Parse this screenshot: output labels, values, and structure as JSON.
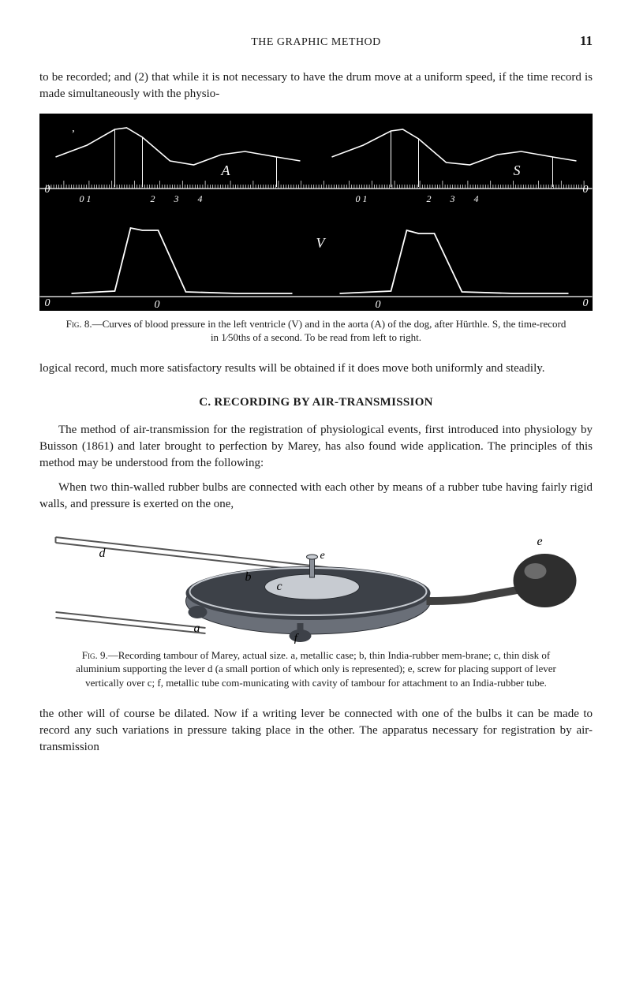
{
  "page": {
    "running_title": "THE GRAPHIC METHOD",
    "number": "11"
  },
  "para_top": "to be recorded; and (2) that while it is not necessary to have the drum move at a uniform speed, if the time record is made simultaneously with the physio-",
  "fig8": {
    "bg": "#000000",
    "stroke": "#ffffff",
    "zero_left": "0",
    "zero_right": "0",
    "label_A": "A",
    "label_S": "S",
    "label_V": "V",
    "ticks_top": [
      "0 1",
      "2",
      "3",
      "4",
      "0 1",
      "2",
      "3",
      "4"
    ],
    "ticks_bottom_left": "0",
    "ticks_bottom_right": "0",
    "top_curve_A_V": {
      "x": [
        20,
        60,
        95,
        110,
        130,
        165,
        195,
        230,
        260,
        300,
        330
      ],
      "y": [
        55,
        40,
        20,
        18,
        30,
        60,
        65,
        52,
        48,
        55,
        60
      ]
    },
    "top_curve_B_S": {
      "x": [
        370,
        410,
        445,
        460,
        480,
        515,
        545,
        580,
        610,
        650,
        680
      ],
      "y": [
        55,
        40,
        22,
        20,
        32,
        62,
        65,
        52,
        48,
        55,
        60
      ]
    },
    "bottom_curve_A": {
      "x": [
        40,
        95,
        115,
        130,
        150,
        185,
        250,
        320
      ],
      "y": [
        228,
        225,
        145,
        148,
        148,
        226,
        228,
        228
      ]
    },
    "bottom_curve_B": {
      "x": [
        380,
        445,
        465,
        480,
        500,
        535,
        600,
        670
      ],
      "y": [
        228,
        225,
        148,
        152,
        152,
        226,
        228,
        228
      ]
    },
    "apostrophe": "ʼ",
    "caption_lead": "Fig. 8.",
    "caption_text": "—Curves of blood pressure in the left ventricle (V) and in the aorta (A) of the dog, after Hürthle.  S, the time-record in 1⁄50ths of a second.  To be read from left to right."
  },
  "para_mid": "logical record, much more satisfactory results will be obtained if it does move both uniformly and steadily.",
  "section_c": "C.  RECORDING BY AIR-TRANSMISSION",
  "para_c1": "The method of air-transmission for the registration of physiological events, first introduced into physiology by Buisson (1861) and later brought to perfection by Marey, has also found wide application.  The principles of this method may be understood from the following:",
  "para_c2": "When two thin-walled rubber bulbs are connected with each other by means of a rubber tube having fairly rigid walls, and pressure is exerted on the one,",
  "fig9": {
    "caption_lead": "Fig. 9.",
    "caption_text": "—Recording tambour of Marey, actual size.  a, metallic case; b, thin India-rubber mem-brane; c, thin disk of aluminium supporting the lever d (a small portion of which only is represented); e, screw for placing support of lever vertically over c; f, metallic tube com-municating with cavity of tambour for attachment to an India-rubber tube.",
    "labels": {
      "a": "a",
      "b": "b",
      "c": "c",
      "d": "d",
      "e": "e",
      "f": "f"
    },
    "metal_fill": "#6a6f78",
    "metal_light": "#c7cbd1",
    "metal_dark": "#3d4148",
    "membrane": "#2e2e2e",
    "tube_dark": "#404040"
  },
  "para_bottom": "the other will of course be dilated.  Now if a writing lever be connected with one of the bulbs it can be made to record any such variations in pressure taking place in the other.  The apparatus necessary for registration by air-transmission"
}
